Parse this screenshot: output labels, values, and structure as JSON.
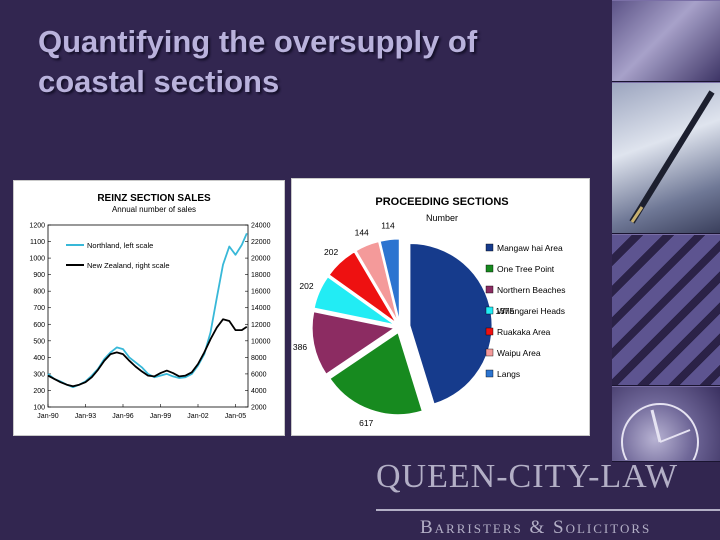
{
  "slide": {
    "title_line1": "Quantifying the oversupply of",
    "title_line2": "coastal sections"
  },
  "logo": {
    "line1": "QUEEN-CITY-LAW",
    "line2": "Barristers & Solicitors"
  },
  "colors": {
    "background": "#322650",
    "title": "#b9b2dc",
    "northland_series": "#38b8d8",
    "nz_series": "#000000",
    "logo": "#b3afc6"
  },
  "chart_data": [
    {
      "type": "line",
      "title": "REINZ SECTION SALES",
      "subtitle": "Annual number of sales",
      "x_tick_labels": [
        "Jan-90",
        "Jan-93",
        "Jan-96",
        "Jan-99",
        "Jan-02",
        "Jan-05"
      ],
      "x_range": [
        1990.0,
        2006.0
      ],
      "left_axis": {
        "ticks": [
          100,
          200,
          300,
          400,
          500,
          600,
          700,
          800,
          900,
          1000,
          1100,
          1200
        ],
        "range": [
          100,
          1200
        ]
      },
      "right_axis": {
        "ticks": [
          2000,
          4000,
          6000,
          8000,
          10000,
          12000,
          14000,
          16000,
          18000,
          20000,
          22000,
          24000
        ],
        "range": [
          2000,
          24000
        ]
      },
      "legend_position": "top-left",
      "grid": false,
      "series": [
        {
          "name": "Northland, left scale",
          "axis": "left",
          "color": "#38b8d8",
          "points": [
            [
              1990.0,
              300
            ],
            [
              1990.5,
              270
            ],
            [
              1991.0,
              255
            ],
            [
              1991.5,
              235
            ],
            [
              1992.0,
              220
            ],
            [
              1992.5,
              235
            ],
            [
              1993.0,
              255
            ],
            [
              1993.5,
              290
            ],
            [
              1994.0,
              330
            ],
            [
              1994.5,
              390
            ],
            [
              1995.0,
              430
            ],
            [
              1995.5,
              460
            ],
            [
              1996.0,
              450
            ],
            [
              1996.5,
              400
            ],
            [
              1997.0,
              370
            ],
            [
              1997.5,
              340
            ],
            [
              1998.0,
              300
            ],
            [
              1998.5,
              280
            ],
            [
              1999.0,
              290
            ],
            [
              1999.5,
              300
            ],
            [
              2000.0,
              285
            ],
            [
              2000.5,
              275
            ],
            [
              2001.0,
              280
            ],
            [
              2001.5,
              300
            ],
            [
              2002.0,
              350
            ],
            [
              2002.5,
              420
            ],
            [
              2003.0,
              550
            ],
            [
              2003.5,
              760
            ],
            [
              2004.0,
              960
            ],
            [
              2004.5,
              1070
            ],
            [
              2005.0,
              1020
            ],
            [
              2005.5,
              1080
            ],
            [
              2005.9,
              1150
            ]
          ]
        },
        {
          "name": "New Zealand, right scale",
          "axis": "right",
          "color": "#000000",
          "points": [
            [
              1990.0,
              5800
            ],
            [
              1990.5,
              5400
            ],
            [
              1991.0,
              5000
            ],
            [
              1991.5,
              4700
            ],
            [
              1992.0,
              4500
            ],
            [
              1992.5,
              4700
            ],
            [
              1993.0,
              5000
            ],
            [
              1993.5,
              5600
            ],
            [
              1994.0,
              6500
            ],
            [
              1994.5,
              7600
            ],
            [
              1995.0,
              8400
            ],
            [
              1995.5,
              8600
            ],
            [
              1996.0,
              8400
            ],
            [
              1996.5,
              7600
            ],
            [
              1997.0,
              6900
            ],
            [
              1997.5,
              6300
            ],
            [
              1998.0,
              5800
            ],
            [
              1998.5,
              5700
            ],
            [
              1999.0,
              6100
            ],
            [
              1999.5,
              6400
            ],
            [
              2000.0,
              6100
            ],
            [
              2000.5,
              5700
            ],
            [
              2001.0,
              5800
            ],
            [
              2001.5,
              6200
            ],
            [
              2002.0,
              7200
            ],
            [
              2002.5,
              8600
            ],
            [
              2003.0,
              10200
            ],
            [
              2003.5,
              11600
            ],
            [
              2004.0,
              12600
            ],
            [
              2004.5,
              12400
            ],
            [
              2005.0,
              11300
            ],
            [
              2005.5,
              11300
            ],
            [
              2005.9,
              11700
            ]
          ]
        }
      ]
    },
    {
      "type": "pie",
      "title": "PROCEEDING SECTIONS",
      "subtitle": "Number",
      "legend_position": "right",
      "slices": [
        {
          "label": "Mangaw hai Area",
          "value": 1375,
          "color": "#163b8c"
        },
        {
          "label": "One Tree Point",
          "value": 617,
          "color": "#178a1f"
        },
        {
          "label": "Northern Beaches",
          "value": 386,
          "color": "#8c2c62"
        },
        {
          "label": "Whangarei Heads",
          "value": 202,
          "color": "#22ecf4"
        },
        {
          "label": "Ruakaka Area",
          "value": 202,
          "color": "#ee1111"
        },
        {
          "label": "Waipu Area",
          "value": 144,
          "color": "#f49a9a"
        },
        {
          "label": "Langs",
          "value": 114,
          "color": "#2c74d0"
        }
      ]
    }
  ]
}
